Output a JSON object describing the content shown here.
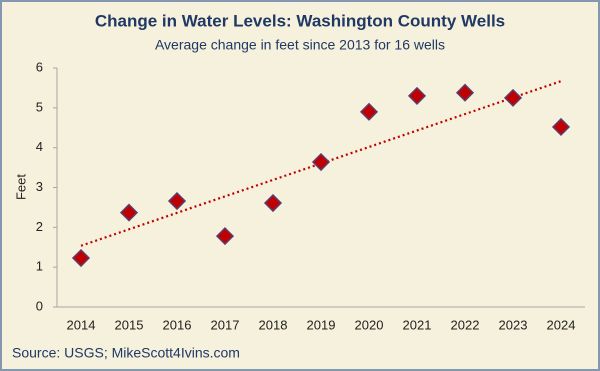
{
  "chart_data": {
    "type": "scatter",
    "title": "Change in Water Levels: Washington County Wells",
    "subtitle": "Average change in feet since 2013 for 16 wells",
    "y_label": "Feet",
    "source": "Source: USGS; MikeScott4Ivins.com",
    "categories": [
      "2014",
      "2015",
      "2016",
      "2017",
      "2018",
      "2019",
      "2020",
      "2021",
      "2022",
      "2023",
      "2024"
    ],
    "values": [
      1.23,
      2.37,
      2.66,
      1.78,
      2.61,
      3.64,
      4.9,
      5.3,
      5.38,
      5.25,
      4.52
    ],
    "color": "#c00000",
    "marker": "diamond",
    "trendline": "linear",
    "trendline_color": "#c00000",
    "ylim": [
      0,
      6
    ],
    "yticks": [
      0,
      1,
      2,
      3,
      4,
      5,
      6
    ],
    "grid": false
  }
}
